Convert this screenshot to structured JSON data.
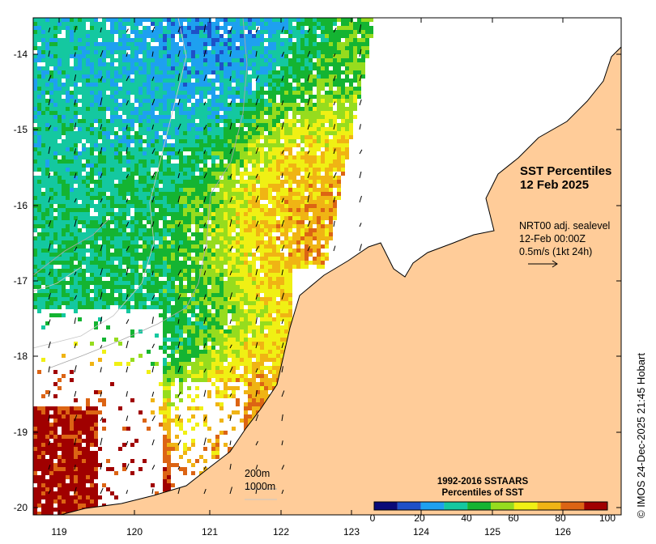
{
  "map": {
    "lat_ticks": [
      "-14",
      "-15",
      "-16",
      "-17",
      "-18",
      "-19",
      "-20"
    ],
    "lon_ticks": [
      "119",
      "120",
      "121",
      "122",
      "123",
      "124",
      "125",
      "126"
    ],
    "land_color": "#ffcc99",
    "coast_color": "#000000"
  },
  "title": {
    "line1": "SST Percentiles",
    "line2": "12 Feb 2025"
  },
  "wind_legend": {
    "line1": "NRT00 adj. sealevel",
    "line2": "12-Feb 00:00Z",
    "line3": "0.5m/s (1kt 24h)",
    "arrow_icon": "arrow-right-icon"
  },
  "depth_scale": {
    "label1": "200m",
    "label2": "1000m"
  },
  "colorbar": {
    "title1": "1992-2016 SSTAARS",
    "title2": "Percentiles of SST",
    "ticks": [
      "0",
      "20",
      "40",
      "60",
      "80",
      "100"
    ],
    "colors": [
      "#0a0a78",
      "#1e50c8",
      "#1ea0f0",
      "#14c8a0",
      "#14b432",
      "#96dc1e",
      "#f0f014",
      "#f0b414",
      "#dc6414",
      "#a00000"
    ]
  },
  "credit": "© IMOS 24-Dec-2025 21:45 Hobart"
}
